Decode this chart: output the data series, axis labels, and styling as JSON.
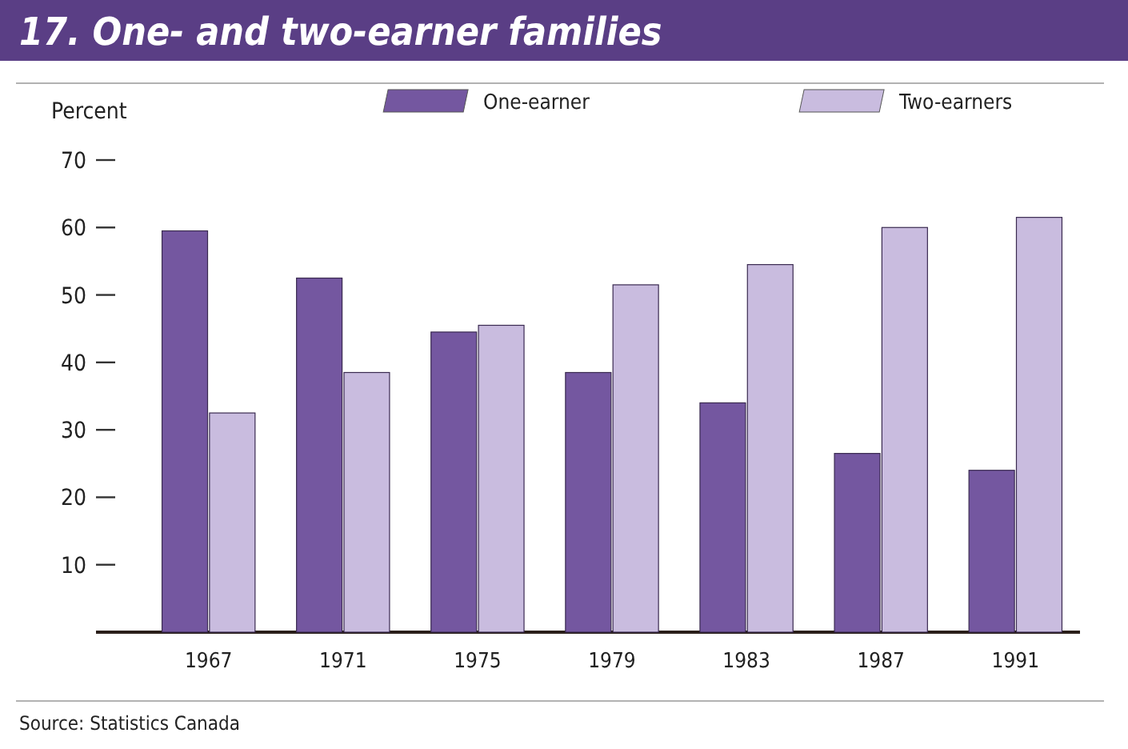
{
  "chart_data": {
    "type": "bar",
    "title": "17. One- and two-earner families",
    "ylabel": "Percent",
    "categories": [
      "1967",
      "1971",
      "1975",
      "1979",
      "1983",
      "1987",
      "1991"
    ],
    "series": [
      {
        "name": "One-earner",
        "color": "#7457a0",
        "values": [
          59.5,
          52.5,
          44.5,
          38.5,
          34,
          26.5,
          24
        ]
      },
      {
        "name": "Two-earners",
        "color": "#c9bcdf",
        "values": [
          32.5,
          38.5,
          45.5,
          51.5,
          54.5,
          60,
          61.5
        ]
      }
    ],
    "ylim": [
      0,
      70
    ],
    "yticks": [
      {
        "value": 0,
        "label": null
      },
      10,
      20,
      30,
      40,
      50,
      60,
      70
    ],
    "grid": false,
    "legend": "top",
    "annotations": [
      "Source: Statistics Canada"
    ]
  }
}
